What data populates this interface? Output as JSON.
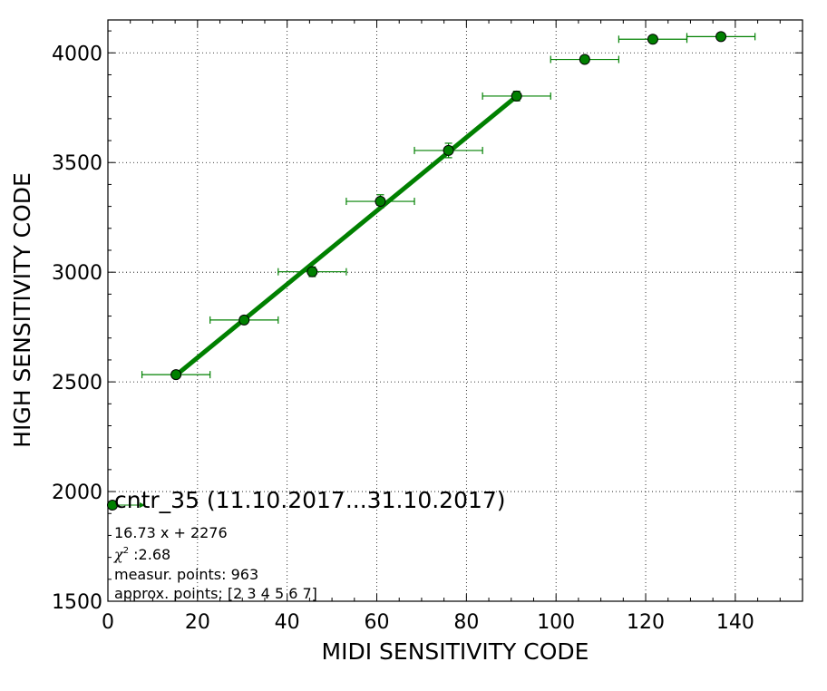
{
  "chart_data": {
    "type": "scatter",
    "xlabel": "MIDI SENSITIVITY CODE",
    "ylabel": "HIGH SENSITIVITY CODE",
    "xlim": [
      0,
      155
    ],
    "ylim": [
      1500,
      4150
    ],
    "xticks": [
      0,
      20,
      40,
      60,
      80,
      100,
      120,
      140
    ],
    "yticks": [
      1500,
      2000,
      2500,
      3000,
      3500,
      4000
    ],
    "grid": true,
    "series": [
      {
        "name": "cntr_35 (11.10.2017...31.10.2017)",
        "color": "#008000",
        "marker": "circle",
        "points": [
          {
            "x": 15.2,
            "y": 2533,
            "xerr": 7.6,
            "yerr": 10
          },
          {
            "x": 30.4,
            "y": 2782,
            "xerr": 7.6,
            "yerr": 12
          },
          {
            "x": 45.6,
            "y": 3002,
            "xerr": 7.6,
            "yerr": 22
          },
          {
            "x": 60.8,
            "y": 3323,
            "xerr": 7.6,
            "yerr": 30
          },
          {
            "x": 76.0,
            "y": 3555,
            "xerr": 7.6,
            "yerr": 33
          },
          {
            "x": 91.2,
            "y": 3803,
            "xerr": 7.6,
            "yerr": 22
          },
          {
            "x": 106.4,
            "y": 3970,
            "xerr": 7.6,
            "yerr": 10
          },
          {
            "x": 121.6,
            "y": 4062,
            "xerr": 7.6,
            "yerr": 8
          },
          {
            "x": 136.8,
            "y": 4074,
            "xerr": 7.6,
            "yerr": 8
          }
        ]
      }
    ],
    "fit": {
      "slope": 16.73,
      "intercept": 2276,
      "x_range": [
        15.2,
        91.2
      ],
      "color": "#008000"
    },
    "legend": {
      "title": "cntr_35 (11.10.2017...31.10.2017)",
      "equation": "16.73 x + 2276",
      "chi_symbol": "χ",
      "chi_exp": "2",
      "chi_value": " :2.68",
      "measur_points": "measur. points: 963",
      "approx_points": "approx. points: [2 3 4 5 6 7]",
      "placement": "lower-left"
    }
  }
}
